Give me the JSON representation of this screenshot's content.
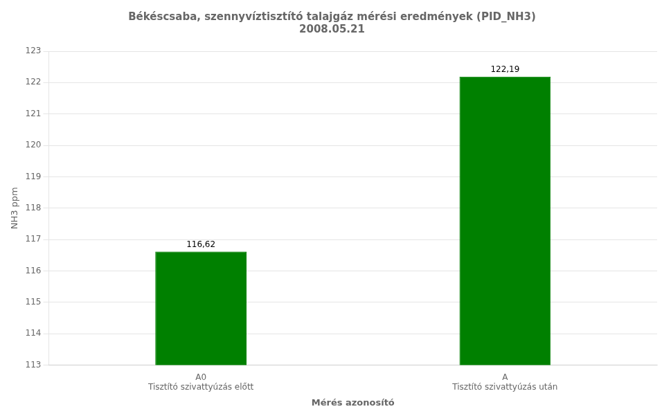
{
  "chart_data": {
    "type": "bar",
    "title": "Békéscsaba, szennyvíztisztító talajgáz mérési eredmények (PID_NH3)\n2008.05.21",
    "categories": [
      "A0",
      "A"
    ],
    "sublabels": [
      "Tisztító szivattyúzás előtt",
      "Tisztító szivattyúzás után"
    ],
    "values": [
      116.62,
      122.19
    ],
    "value_labels": [
      "116,62",
      "122,19"
    ],
    "data_labels": true,
    "color": "#008000",
    "xlabel": "Mérés azonosító",
    "ylabel": "NH3 ppm",
    "ylim": [
      113,
      123
    ],
    "yticks": [
      113,
      114,
      115,
      116,
      117,
      118,
      119,
      120,
      121,
      122,
      123
    ],
    "grid": true
  }
}
